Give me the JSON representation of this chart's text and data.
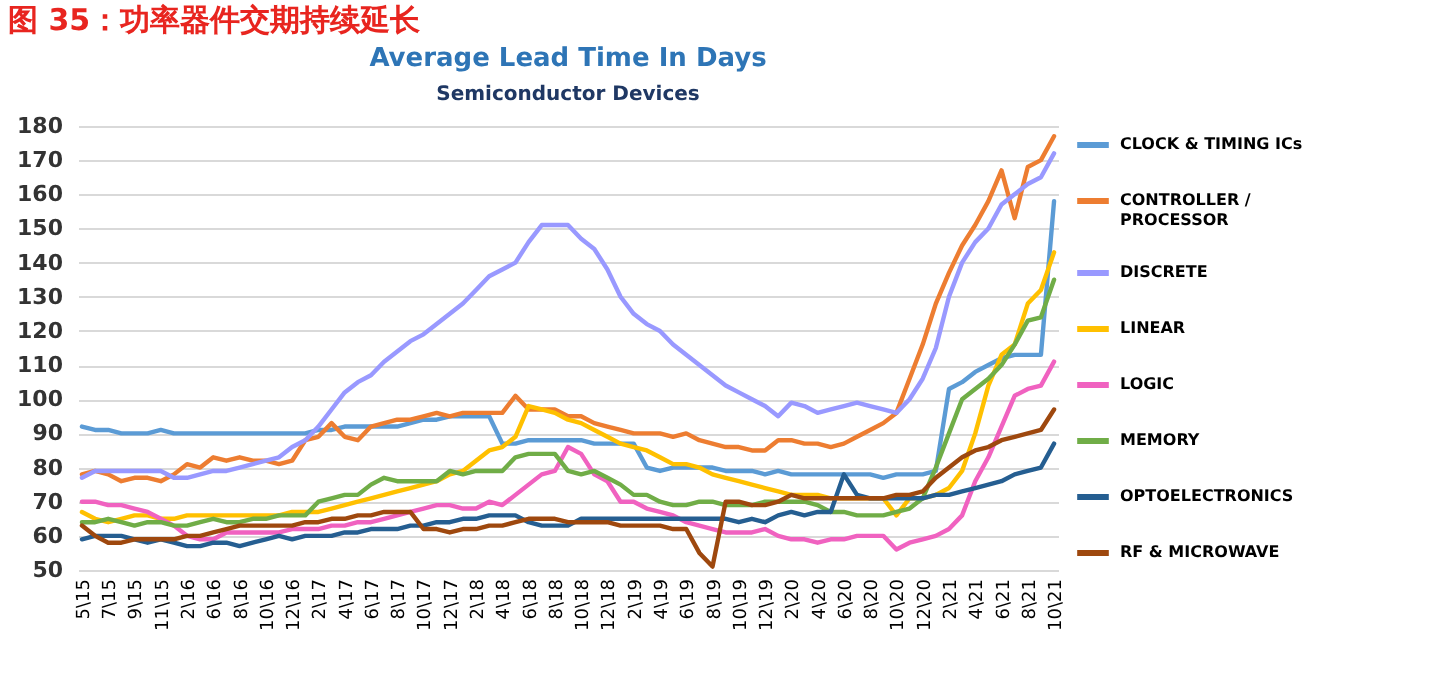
{
  "chart_data": {
    "type": "line",
    "title": "Average Lead Time In Days",
    "subtitle": "Semiconductor Devices",
    "annotations": [
      "图 35：功率器件交期持续延长"
    ],
    "categories": [
      "5\\15",
      null,
      "7\\15",
      null,
      "9\\15",
      null,
      "11\\15",
      null,
      "2\\16",
      null,
      "6\\16",
      null,
      "8\\16",
      null,
      "10\\16",
      null,
      "12\\16",
      null,
      "2\\17",
      null,
      "4\\17",
      null,
      "6\\17",
      null,
      "8\\17",
      null,
      "10\\17",
      null,
      "12\\17",
      null,
      "2\\18",
      null,
      "4\\18",
      null,
      "6\\18",
      null,
      "8\\18",
      null,
      "10\\18",
      null,
      "12\\18",
      null,
      "2\\19",
      null,
      "4\\19",
      null,
      "6\\19",
      null,
      "8\\19",
      null,
      "10\\19",
      null,
      "12\\19",
      null,
      "2\\20",
      null,
      "4\\20",
      null,
      "6\\20",
      null,
      "8\\20",
      null,
      "10\\20",
      null,
      "12\\20",
      null,
      "2\\21",
      null,
      "4\\21",
      null,
      "6\\21",
      null,
      "8\\21",
      null,
      "10\\21"
    ],
    "ylim": [
      50,
      180
    ],
    "yticks": [
      50,
      60,
      70,
      80,
      90,
      100,
      110,
      120,
      130,
      140,
      150,
      160,
      170,
      180
    ],
    "grid": "y",
    "legend": "right",
    "line_style": "solid",
    "series": [
      {
        "name": "CLOCK & TIMING ICs",
        "color": "#5b9bd5",
        "values": [
          92,
          91,
          91,
          90,
          90,
          90,
          91,
          90,
          90,
          90,
          90,
          90,
          90,
          90,
          90,
          90,
          90,
          90,
          91,
          91,
          92,
          92,
          92,
          92,
          92,
          93,
          94,
          94,
          95,
          95,
          95,
          95,
          87,
          87,
          88,
          88,
          88,
          88,
          88,
          87,
          87,
          87,
          87,
          80,
          79,
          80,
          80,
          80,
          80,
          79,
          79,
          79,
          78,
          79,
          78,
          78,
          78,
          78,
          78,
          78,
          78,
          77,
          78,
          78,
          78,
          79,
          103,
          105,
          108,
          110,
          112,
          113,
          113,
          113,
          158
        ]
      },
      {
        "name": "CONTROLLER / PROCESSOR",
        "color": "#ed7d31",
        "values": [
          78,
          79,
          78,
          76,
          77,
          77,
          76,
          78,
          81,
          80,
          83,
          82,
          83,
          82,
          82,
          81,
          82,
          88,
          89,
          93,
          89,
          88,
          92,
          93,
          94,
          94,
          95,
          96,
          95,
          96,
          96,
          96,
          96,
          101,
          97,
          97,
          97,
          95,
          95,
          93,
          92,
          91,
          90,
          90,
          90,
          89,
          90,
          88,
          87,
          86,
          86,
          85,
          85,
          88,
          88,
          87,
          87,
          86,
          87,
          89,
          91,
          93,
          96,
          106,
          116,
          128,
          137,
          145,
          151,
          158,
          167,
          153,
          168,
          170,
          177
        ]
      },
      {
        "name": "DISCRETE",
        "color": "#9999ff",
        "values": [
          77,
          79,
          79,
          79,
          79,
          79,
          79,
          77,
          77,
          78,
          79,
          79,
          80,
          81,
          82,
          83,
          86,
          88,
          92,
          97,
          102,
          105,
          107,
          111,
          114,
          117,
          119,
          122,
          125,
          128,
          132,
          136,
          138,
          140,
          146,
          151,
          151,
          151,
          147,
          144,
          138,
          130,
          125,
          122,
          120,
          116,
          113,
          110,
          107,
          104,
          102,
          100,
          98,
          95,
          99,
          98,
          96,
          97,
          98,
          99,
          98,
          97,
          96,
          100,
          106,
          115,
          130,
          140,
          146,
          150,
          157,
          160,
          163,
          165,
          172
        ]
      },
      {
        "name": "LINEAR",
        "color": "#ffc000",
        "values": [
          67,
          65,
          64,
          65,
          66,
          66,
          65,
          65,
          66,
          66,
          66,
          66,
          66,
          66,
          66,
          66,
          67,
          67,
          67,
          68,
          69,
          70,
          71,
          72,
          73,
          74,
          75,
          76,
          78,
          79,
          82,
          85,
          86,
          89,
          98,
          97,
          96,
          94,
          93,
          91,
          89,
          87,
          86,
          85,
          83,
          81,
          81,
          80,
          78,
          77,
          76,
          75,
          74,
          73,
          72,
          72,
          72,
          71,
          71,
          71,
          71,
          71,
          66,
          71,
          71,
          72,
          74,
          79,
          90,
          104,
          113,
          116,
          128,
          132,
          143
        ]
      },
      {
        "name": "LOGIC",
        "color": "#f062c0",
        "values": [
          70,
          70,
          69,
          69,
          68,
          67,
          65,
          63,
          60,
          59,
          59,
          61,
          61,
          61,
          61,
          61,
          62,
          62,
          62,
          63,
          63,
          64,
          64,
          65,
          66,
          67,
          68,
          69,
          69,
          68,
          68,
          70,
          69,
          72,
          75,
          78,
          79,
          86,
          84,
          78,
          76,
          70,
          70,
          68,
          67,
          66,
          64,
          63,
          62,
          61,
          61,
          61,
          62,
          60,
          59,
          59,
          58,
          59,
          59,
          60,
          60,
          60,
          56,
          58,
          59,
          60,
          62,
          66,
          76,
          83,
          92,
          101,
          103,
          104,
          111
        ]
      },
      {
        "name": "MEMORY",
        "color": "#70ad47",
        "values": [
          64,
          64,
          65,
          64,
          63,
          64,
          64,
          63,
          63,
          64,
          65,
          64,
          64,
          65,
          65,
          66,
          66,
          66,
          70,
          71,
          72,
          72,
          75,
          77,
          76,
          76,
          76,
          76,
          79,
          78,
          79,
          79,
          79,
          83,
          84,
          84,
          84,
          79,
          78,
          79,
          77,
          75,
          72,
          72,
          70,
          69,
          69,
          70,
          70,
          69,
          69,
          69,
          70,
          70,
          70,
          70,
          69,
          67,
          67,
          66,
          66,
          66,
          67,
          68,
          71,
          80,
          90,
          100,
          103,
          106,
          110,
          116,
          123,
          124,
          135
        ]
      },
      {
        "name": "OPTOELECTRONICS",
        "color": "#255e91",
        "values": [
          59,
          60,
          60,
          60,
          59,
          58,
          59,
          58,
          57,
          57,
          58,
          58,
          57,
          58,
          59,
          60,
          59,
          60,
          60,
          60,
          61,
          61,
          62,
          62,
          62,
          63,
          63,
          64,
          64,
          65,
          65,
          66,
          66,
          66,
          64,
          63,
          63,
          63,
          65,
          65,
          65,
          65,
          65,
          65,
          65,
          65,
          65,
          65,
          65,
          65,
          64,
          65,
          64,
          66,
          67,
          66,
          67,
          67,
          78,
          72,
          71,
          71,
          71,
          71,
          71,
          72,
          72,
          73,
          74,
          75,
          76,
          78,
          79,
          80,
          87
        ]
      },
      {
        "name": "RF & MICROWAVE",
        "color": "#9e480e",
        "values": [
          63,
          60,
          58,
          58,
          59,
          59,
          59,
          59,
          60,
          60,
          61,
          62,
          63,
          63,
          63,
          63,
          63,
          64,
          64,
          65,
          65,
          66,
          66,
          67,
          67,
          67,
          62,
          62,
          61,
          62,
          62,
          63,
          63,
          64,
          65,
          65,
          65,
          64,
          64,
          64,
          64,
          63,
          63,
          63,
          63,
          62,
          62,
          55,
          51,
          70,
          70,
          69,
          69,
          70,
          72,
          71,
          71,
          71,
          71,
          71,
          71,
          71,
          72,
          72,
          73,
          77,
          80,
          83,
          85,
          86,
          88,
          89,
          90,
          91,
          97
        ]
      }
    ]
  }
}
